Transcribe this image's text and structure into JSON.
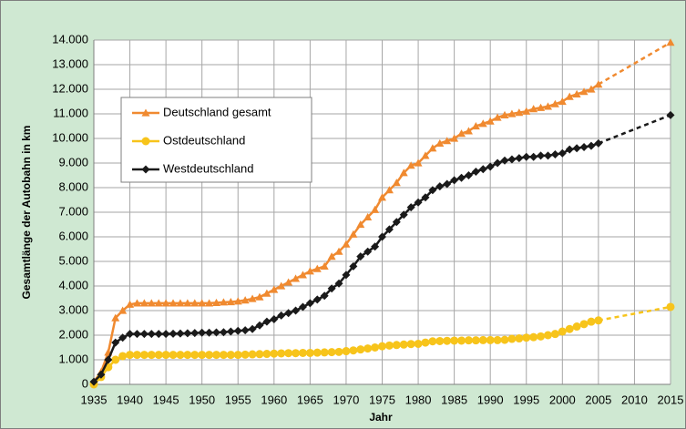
{
  "chart_data": {
    "type": "line",
    "xlabel": "Jahr",
    "ylabel": "Gesamtlänge der Autobahn in km",
    "x": [
      1935,
      1936,
      1937,
      1938,
      1939,
      1940,
      1941,
      1942,
      1943,
      1944,
      1945,
      1946,
      1947,
      1948,
      1949,
      1950,
      1951,
      1952,
      1953,
      1954,
      1955,
      1956,
      1957,
      1958,
      1959,
      1960,
      1961,
      1962,
      1963,
      1964,
      1965,
      1966,
      1967,
      1968,
      1969,
      1970,
      1971,
      1972,
      1973,
      1974,
      1975,
      1976,
      1977,
      1978,
      1979,
      1980,
      1981,
      1982,
      1983,
      1984,
      1985,
      1986,
      1987,
      1988,
      1989,
      1990,
      1991,
      1992,
      1993,
      1994,
      1995,
      1996,
      1997,
      1998,
      1999,
      2000,
      2001,
      2002,
      2003,
      2004,
      2005,
      2015
    ],
    "series": [
      {
        "name": "Deutschland gesamt",
        "color": "#f08a30",
        "marker": "triangle",
        "values": [
          108,
          500,
          1300,
          2700,
          3000,
          3250,
          3300,
          3300,
          3300,
          3300,
          3300,
          3300,
          3300,
          3300,
          3300,
          3300,
          3300,
          3320,
          3340,
          3350,
          3380,
          3420,
          3480,
          3550,
          3700,
          3850,
          4000,
          4150,
          4300,
          4450,
          4600,
          4700,
          4800,
          5200,
          5400,
          5700,
          6100,
          6500,
          6800,
          7100,
          7600,
          7900,
          8200,
          8600,
          8900,
          9000,
          9300,
          9600,
          9800,
          9900,
          10000,
          10200,
          10300,
          10500,
          10600,
          10700,
          10850,
          10950,
          11000,
          11050,
          11100,
          11200,
          11250,
          11300,
          11400,
          11500,
          11700,
          11800,
          11900,
          12000,
          12200,
          13900
        ]
      },
      {
        "name": "Ostdeutschland",
        "color": "#f7c41b",
        "marker": "circle",
        "values": [
          0,
          300,
          700,
          1000,
          1150,
          1200,
          1200,
          1200,
          1200,
          1200,
          1200,
          1200,
          1200,
          1200,
          1200,
          1200,
          1200,
          1200,
          1200,
          1200,
          1200,
          1210,
          1220,
          1230,
          1240,
          1250,
          1260,
          1270,
          1270,
          1280,
          1280,
          1290,
          1300,
          1310,
          1320,
          1350,
          1380,
          1420,
          1460,
          1500,
          1550,
          1580,
          1600,
          1620,
          1640,
          1650,
          1700,
          1750,
          1760,
          1770,
          1780,
          1780,
          1790,
          1790,
          1800,
          1800,
          1800,
          1810,
          1850,
          1870,
          1900,
          1920,
          1950,
          2000,
          2050,
          2150,
          2250,
          2350,
          2450,
          2550,
          2600,
          3150
        ]
      },
      {
        "name": "Westdeutschland",
        "color": "#1a1a1a",
        "marker": "diamond",
        "values": [
          108,
          400,
          1000,
          1700,
          1900,
          2050,
          2050,
          2050,
          2050,
          2050,
          2050,
          2060,
          2070,
          2080,
          2090,
          2100,
          2100,
          2110,
          2120,
          2150,
          2175,
          2200,
          2250,
          2400,
          2550,
          2650,
          2800,
          2900,
          3000,
          3150,
          3300,
          3450,
          3600,
          3900,
          4100,
          4450,
          4800,
          5200,
          5400,
          5600,
          6000,
          6300,
          6600,
          6900,
          7200,
          7400,
          7600,
          7900,
          8050,
          8150,
          8300,
          8400,
          8500,
          8650,
          8750,
          8850,
          9000,
          9100,
          9150,
          9200,
          9250,
          9250,
          9300,
          9300,
          9350,
          9400,
          9550,
          9600,
          9650,
          9700,
          9800,
          10950
        ]
      }
    ],
    "xlim": [
      1935,
      2015
    ],
    "xticks": [
      1935,
      1940,
      1945,
      1950,
      1955,
      1960,
      1965,
      1970,
      1975,
      1980,
      1985,
      1990,
      1995,
      2000,
      2005,
      2010,
      2015
    ],
    "ylim": [
      0,
      14000
    ],
    "yticks": [
      0,
      {
        "value": 1000,
        "label": "1.000"
      },
      {
        "value": 2000,
        "label": "2.000"
      },
      {
        "value": 3000,
        "label": "3.000"
      },
      {
        "value": 4000,
        "label": "4.000"
      },
      {
        "value": 5000,
        "label": "5.000"
      },
      {
        "value": 6000,
        "label": "6.000"
      },
      {
        "value": 7000,
        "label": "7.000"
      },
      {
        "value": 8000,
        "label": "8.000"
      },
      {
        "value": 9000,
        "label": "9.000"
      },
      {
        "value": 10000,
        "label": "10.000"
      },
      {
        "value": 11000,
        "label": "11.000"
      },
      {
        "value": 12000,
        "label": "12.000"
      },
      {
        "value": 13000,
        "label": "13.000"
      },
      {
        "value": 14000,
        "label": "14.000"
      }
    ],
    "grid": true,
    "legend": "upper left"
  }
}
